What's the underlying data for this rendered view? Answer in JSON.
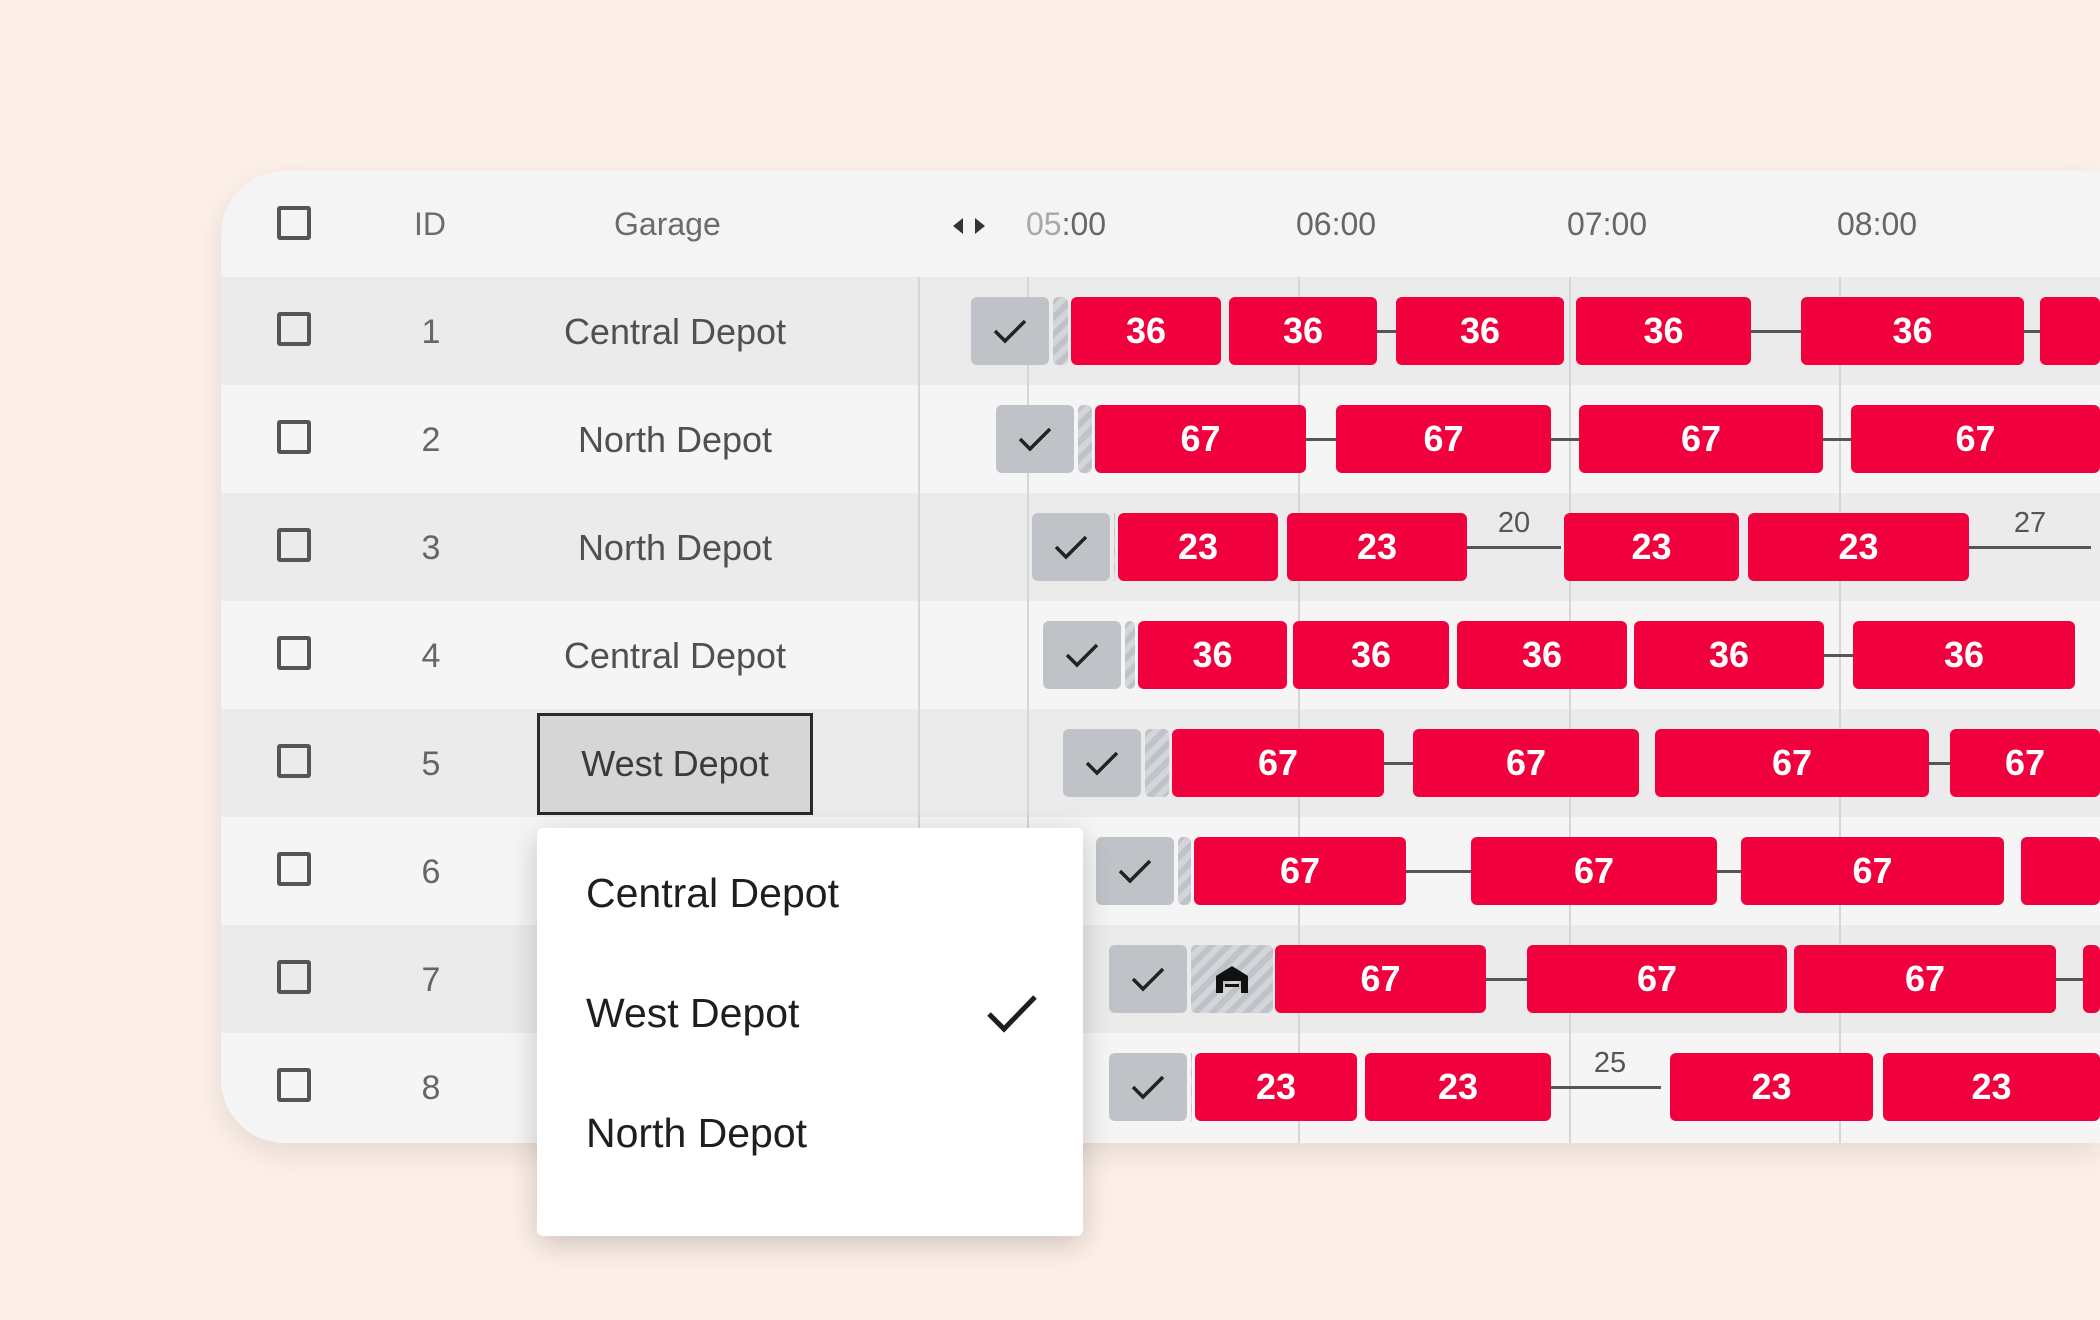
{
  "header": {
    "id_label": "ID",
    "garage_label": "Garage",
    "times": [
      "05:00",
      "06:00",
      "07:00",
      "08:00"
    ]
  },
  "rows": [
    {
      "id": "1",
      "garage": "Central Depot",
      "trips": [
        "36",
        "36",
        "36",
        "36",
        "36"
      ]
    },
    {
      "id": "2",
      "garage": "North Depot",
      "trips": [
        "67",
        "67",
        "67",
        "67"
      ]
    },
    {
      "id": "3",
      "garage": "North Depot",
      "trips": [
        "23",
        "23",
        "23",
        "23"
      ],
      "gaps": [
        "20",
        "27"
      ]
    },
    {
      "id": "4",
      "garage": "Central Depot",
      "trips": [
        "36",
        "36",
        "36",
        "36",
        "36"
      ]
    },
    {
      "id": "5",
      "garage": "West Depot",
      "trips": [
        "67",
        "67",
        "67",
        "67"
      ]
    },
    {
      "id": "6",
      "trips": [
        "67",
        "67",
        "67"
      ]
    },
    {
      "id": "7",
      "trips": [
        "67",
        "67",
        "67"
      ]
    },
    {
      "id": "8",
      "trips": [
        "23",
        "23",
        "23",
        "23"
      ],
      "gaps": [
        "25"
      ]
    }
  ],
  "dropdown": {
    "options": [
      "Central Depot",
      "West Depot",
      "North Depot"
    ],
    "selected": "West Depot"
  },
  "colors": {
    "trip": "#f0003c",
    "done": "#bfc3c8",
    "background": "#fdf0e8"
  }
}
